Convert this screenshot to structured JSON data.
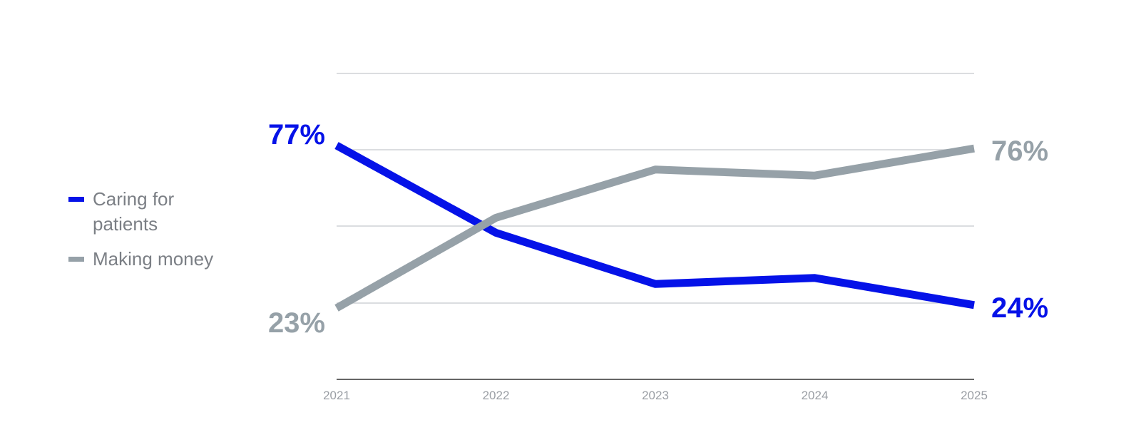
{
  "chart_data": {
    "type": "line",
    "x": [
      2021,
      2022,
      2023,
      2024,
      2025
    ],
    "ylim": [
      0,
      100
    ],
    "grid": true,
    "legend_position": "left",
    "series": [
      {
        "name": "Caring for patients",
        "color": "#0512e8",
        "values": [
          77,
          48,
          31,
          33,
          24
        ],
        "start_label": "77%",
        "end_label": "24%"
      },
      {
        "name": "Making money",
        "color": "#96a1a8",
        "values": [
          23,
          53,
          69,
          67,
          76
        ],
        "start_label": "23%",
        "end_label": "76%"
      }
    ]
  }
}
